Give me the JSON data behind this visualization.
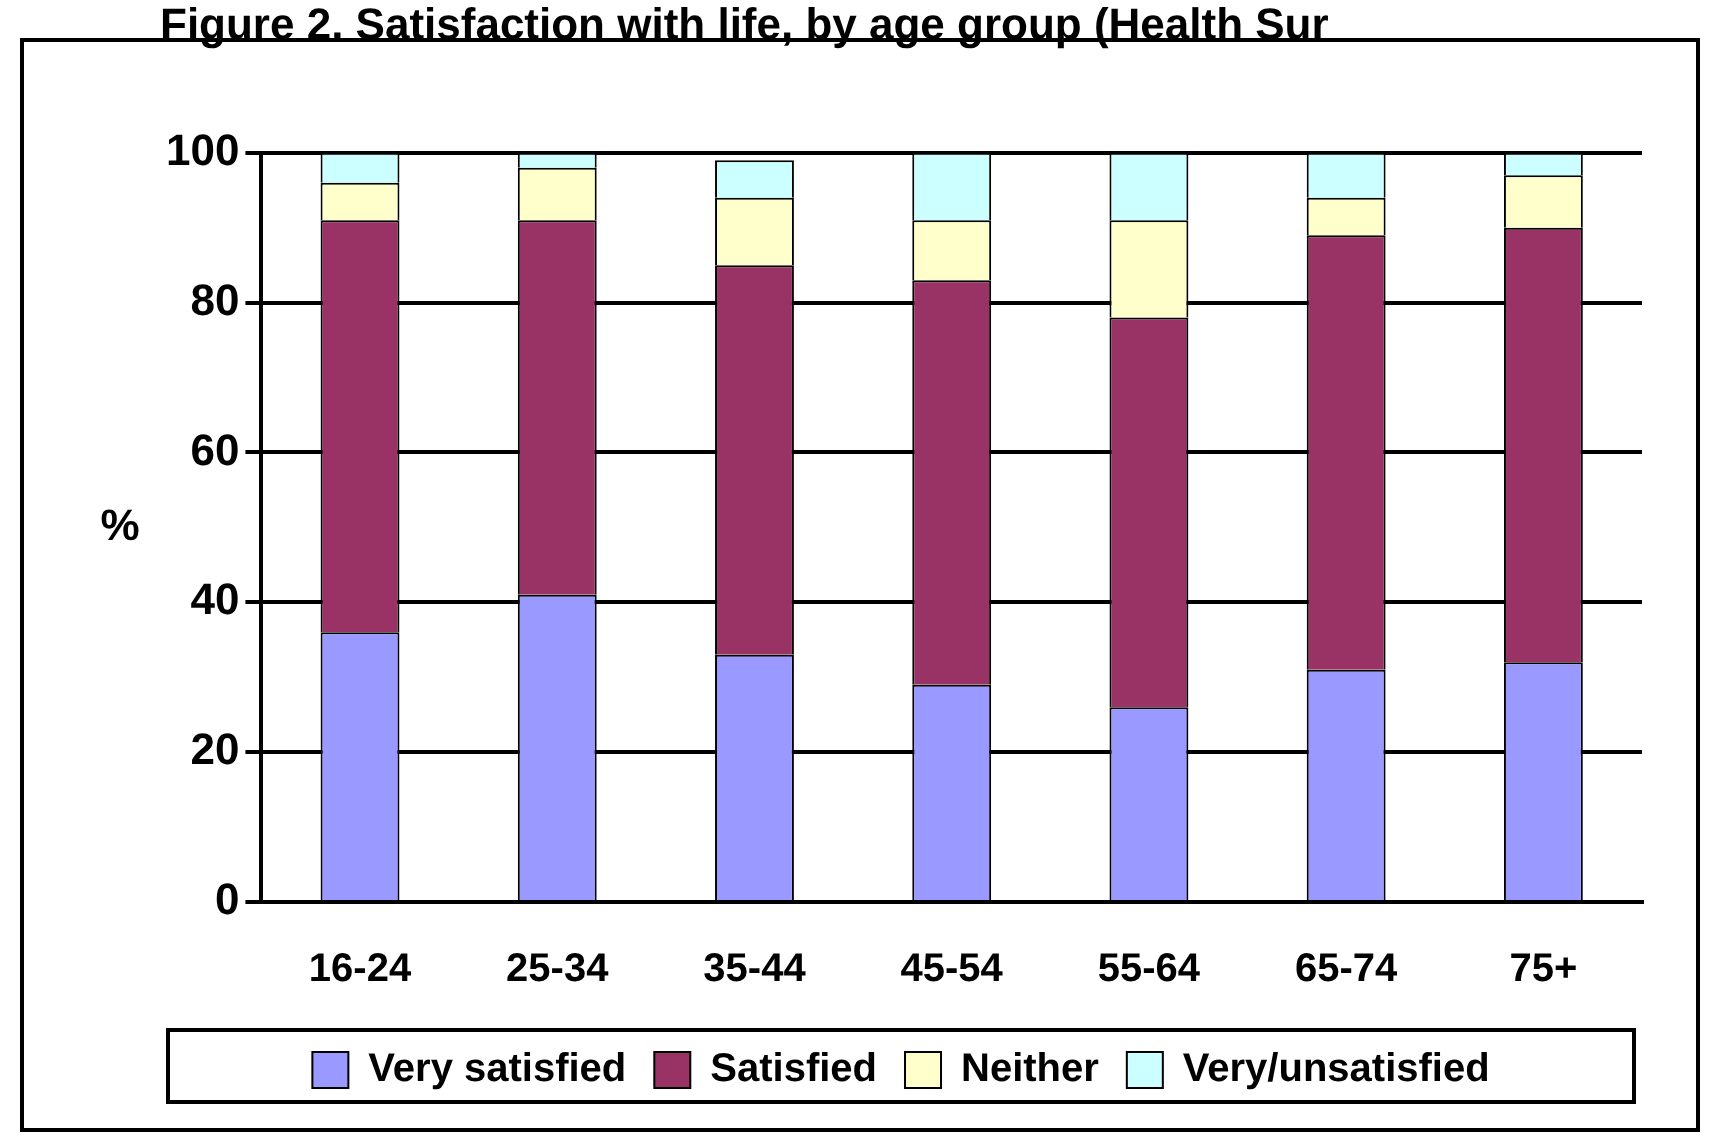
{
  "chart_data": {
    "type": "bar",
    "title": "Figure 2. Satisfaction with life, by age group (Health Sur",
    "ylabel": "%",
    "categories": [
      "16-24",
      "25-34",
      "35-44",
      "45-54",
      "55-64",
      "65-74",
      "75+"
    ],
    "series": [
      {
        "name": "Very satisfied",
        "color": "#9999ff",
        "values": [
          36,
          41,
          33,
          29,
          26,
          31,
          32
        ]
      },
      {
        "name": "Satisfied",
        "color": "#993366",
        "values": [
          55,
          50,
          52,
          54,
          52,
          58,
          58
        ]
      },
      {
        "name": "Neither",
        "color": "#ffffcc",
        "values": [
          5,
          7,
          9,
          8,
          13,
          5,
          7
        ]
      },
      {
        "name": "Very/unsatisfied",
        "color": "#ccffff",
        "values": [
          4,
          2,
          5,
          9,
          9,
          6,
          3
        ]
      }
    ],
    "stacked": true,
    "ylim": [
      0,
      100
    ],
    "yticks": [
      0,
      20,
      40,
      60,
      80,
      100
    ],
    "grid": "y",
    "legend": "bottom"
  }
}
